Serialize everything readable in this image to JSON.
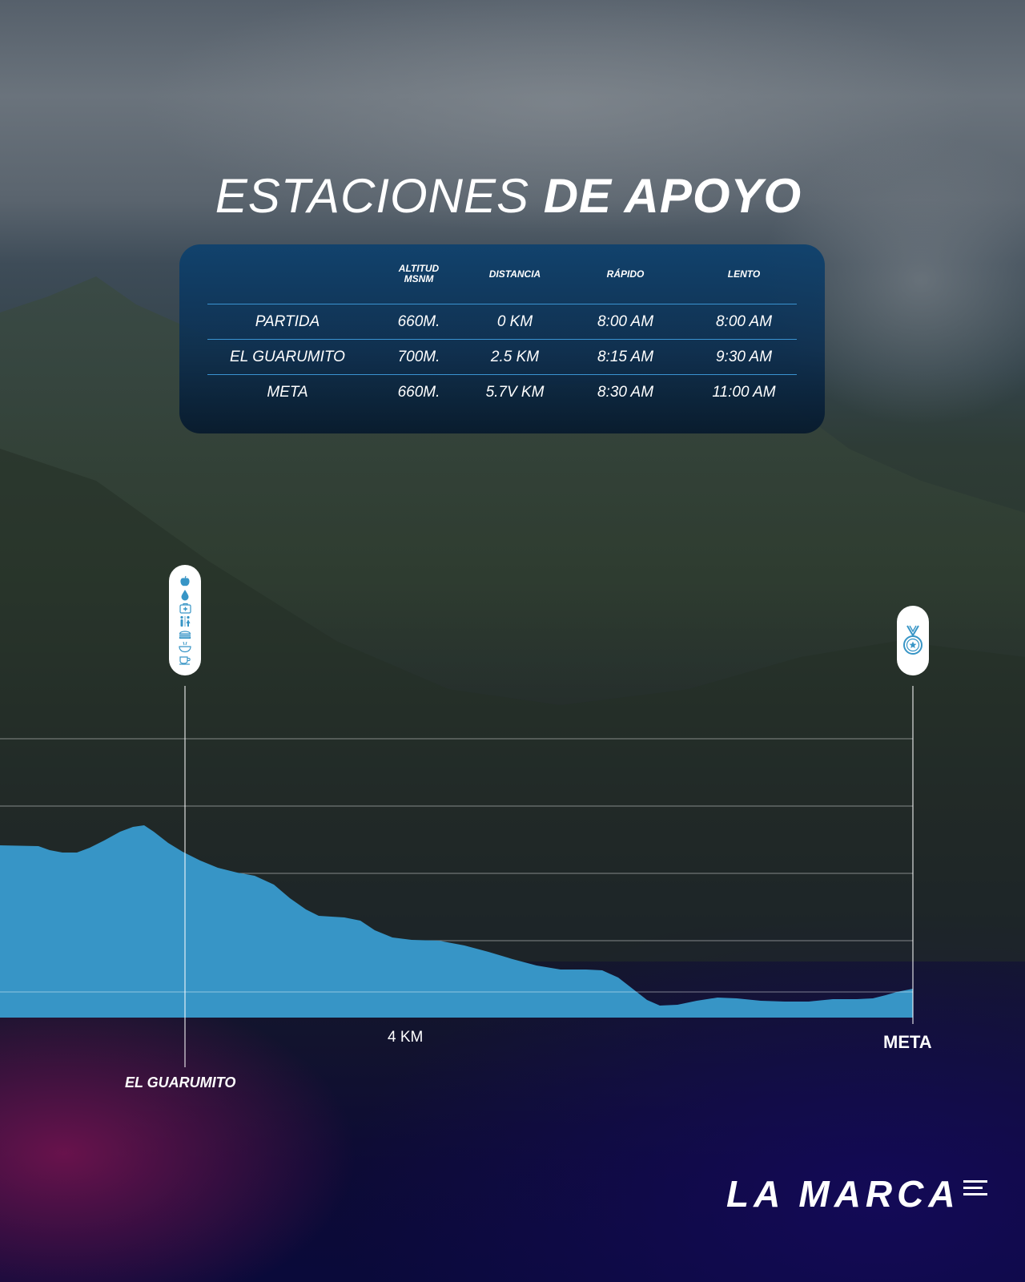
{
  "title": {
    "light": "ESTACIONES",
    "bold": "DE APOYO"
  },
  "table": {
    "headers": [
      "",
      "ALTITUD MSNM",
      "DISTANCIA",
      "RÁPIDO",
      "LENTO"
    ],
    "rows": [
      [
        "PARTIDA",
        "660M.",
        "0 KM",
        "8:00 AM",
        "8:00 AM"
      ],
      [
        "EL GUARUMITO",
        "700M.",
        "2.5 KM",
        "8:15 AM",
        "9:30 AM"
      ],
      [
        "META",
        "660M.",
        "5.7V KM",
        "8:30 AM",
        "11:00 AM"
      ]
    ]
  },
  "profile": {
    "km_label": "4 KM",
    "meta_label": "META",
    "station_label": "EL GUARUMITO",
    "fill_color": "#3795c6",
    "station_icons": [
      "apple-icon",
      "water-drop-icon",
      "first-aid-icon",
      "restroom-icon",
      "sandwich-icon",
      "bowl-icon",
      "coffee-cup-icon"
    ],
    "finish_icon": "medal-icon"
  },
  "logo": {
    "text": "LA MARCA"
  }
}
